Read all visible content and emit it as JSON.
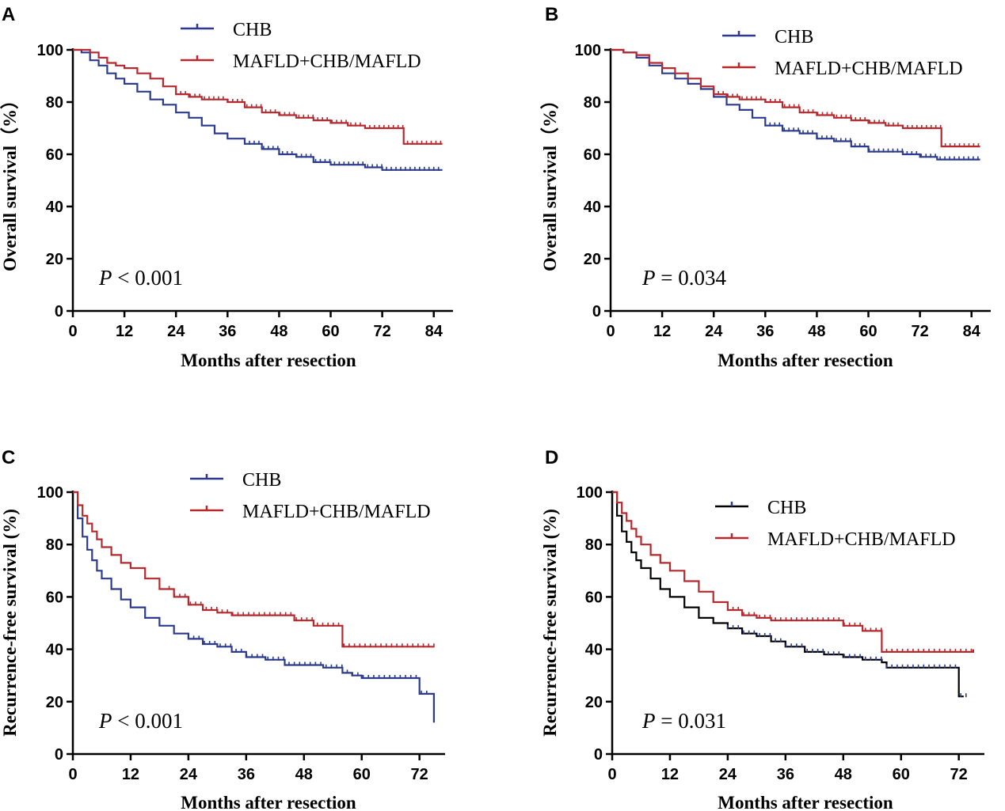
{
  "colors": {
    "chb_blue": "#2b3a8f",
    "mafld_red": "#b5282e",
    "chb_black": "#000000",
    "axis": "#000000"
  },
  "chart_data": [
    {
      "panel": "A",
      "type": "line",
      "subtype": "kaplan-meier",
      "title": "",
      "xlabel": "Months after resection",
      "ylabel": "Overall survival（%）",
      "xticks": [
        0,
        12,
        24,
        36,
        48,
        60,
        72,
        84
      ],
      "yticks": [
        0,
        20,
        40,
        60,
        80,
        100
      ],
      "xlim": [
        0,
        87
      ],
      "ylim": [
        0,
        100
      ],
      "annotation": {
        "p_symbol": "P",
        "p_text": " < 0.001"
      },
      "legend_position": "top-center",
      "series": [
        {
          "name": "CHB",
          "color": "#2b3a8f",
          "points": [
            [
              0,
              100
            ],
            [
              2,
              99
            ],
            [
              4,
              96
            ],
            [
              6,
              94
            ],
            [
              8,
              91
            ],
            [
              10,
              89
            ],
            [
              12,
              87
            ],
            [
              15,
              84
            ],
            [
              18,
              81
            ],
            [
              21,
              79
            ],
            [
              24,
              76
            ],
            [
              27,
              74
            ],
            [
              30,
              71
            ],
            [
              33,
              68
            ],
            [
              36,
              66
            ],
            [
              40,
              64
            ],
            [
              44,
              62
            ],
            [
              48,
              60
            ],
            [
              52,
              59
            ],
            [
              56,
              57
            ],
            [
              60,
              56
            ],
            [
              64,
              56
            ],
            [
              68,
              55
            ],
            [
              72,
              54
            ],
            [
              76,
              54
            ],
            [
              80,
              54
            ],
            [
              86,
              54
            ]
          ],
          "censor_from": 40,
          "censor_to": 86
        },
        {
          "name": "MAFLD+CHB/MAFLD",
          "color": "#b5282e",
          "points": [
            [
              0,
              100
            ],
            [
              4,
              99
            ],
            [
              6,
              97
            ],
            [
              8,
              95
            ],
            [
              10,
              94
            ],
            [
              12,
              93
            ],
            [
              15,
              91
            ],
            [
              18,
              89
            ],
            [
              21,
              86
            ],
            [
              24,
              83
            ],
            [
              27,
              82
            ],
            [
              30,
              81
            ],
            [
              36,
              80
            ],
            [
              40,
              78
            ],
            [
              44,
              76
            ],
            [
              48,
              75
            ],
            [
              52,
              74
            ],
            [
              56,
              73
            ],
            [
              60,
              72
            ],
            [
              64,
              71
            ],
            [
              68,
              70
            ],
            [
              72,
              70
            ],
            [
              77,
              70
            ],
            [
              77,
              64
            ],
            [
              86,
              64
            ]
          ],
          "censor_from": 24,
          "censor_to": 86
        }
      ]
    },
    {
      "panel": "B",
      "type": "line",
      "subtype": "kaplan-meier",
      "title": "",
      "xlabel": "Months after resection",
      "ylabel": "Overall survival（%）",
      "xticks": [
        0,
        12,
        24,
        36,
        48,
        60,
        72,
        84
      ],
      "yticks": [
        0,
        20,
        40,
        60,
        80,
        100
      ],
      "xlim": [
        0,
        87
      ],
      "ylim": [
        0,
        100
      ],
      "annotation": {
        "p_symbol": "P",
        "p_text": " = 0.034"
      },
      "legend_position": "top-center",
      "series": [
        {
          "name": "CHB",
          "color": "#2b3a8f",
          "points": [
            [
              0,
              100
            ],
            [
              3,
              99
            ],
            [
              6,
              97
            ],
            [
              9,
              94
            ],
            [
              12,
              91
            ],
            [
              15,
              89
            ],
            [
              18,
              87
            ],
            [
              21,
              85
            ],
            [
              24,
              82
            ],
            [
              27,
              79
            ],
            [
              30,
              77
            ],
            [
              33,
              74
            ],
            [
              36,
              71
            ],
            [
              40,
              69
            ],
            [
              44,
              68
            ],
            [
              48,
              66
            ],
            [
              52,
              65
            ],
            [
              56,
              63
            ],
            [
              60,
              61
            ],
            [
              64,
              61
            ],
            [
              68,
              60
            ],
            [
              72,
              59
            ],
            [
              76,
              58
            ],
            [
              80,
              58
            ],
            [
              86,
              58
            ]
          ],
          "censor_from": 36,
          "censor_to": 86
        },
        {
          "name": "MAFLD+CHB/MAFLD",
          "color": "#b5282e",
          "points": [
            [
              0,
              100
            ],
            [
              3,
              99
            ],
            [
              6,
              98
            ],
            [
              9,
              95
            ],
            [
              12,
              93
            ],
            [
              15,
              91
            ],
            [
              18,
              89
            ],
            [
              21,
              86
            ],
            [
              24,
              83
            ],
            [
              27,
              82
            ],
            [
              30,
              81
            ],
            [
              36,
              80
            ],
            [
              40,
              78
            ],
            [
              44,
              76
            ],
            [
              48,
              75
            ],
            [
              52,
              74
            ],
            [
              56,
              73
            ],
            [
              60,
              72
            ],
            [
              64,
              71
            ],
            [
              68,
              70
            ],
            [
              72,
              70
            ],
            [
              77,
              70
            ],
            [
              77,
              63
            ],
            [
              86,
              63
            ]
          ],
          "censor_from": 24,
          "censor_to": 86
        }
      ]
    },
    {
      "panel": "C",
      "type": "line",
      "subtype": "kaplan-meier",
      "title": "",
      "xlabel": "Months after resection",
      "ylabel": "Recurrence-free survival (%)",
      "xticks": [
        0,
        12,
        24,
        36,
        48,
        60,
        72
      ],
      "yticks": [
        0,
        20,
        40,
        60,
        80,
        100
      ],
      "xlim": [
        0,
        76
      ],
      "ylim": [
        0,
        100
      ],
      "annotation": {
        "p_symbol": "P",
        "p_text": " < 0.001"
      },
      "legend_position": "top-center",
      "series": [
        {
          "name": "CHB",
          "color": "#2b3a8f",
          "points": [
            [
              0,
              100
            ],
            [
              1,
              90
            ],
            [
              2,
              83
            ],
            [
              3,
              78
            ],
            [
              4,
              74
            ],
            [
              5,
              70
            ],
            [
              6,
              67
            ],
            [
              8,
              63
            ],
            [
              10,
              59
            ],
            [
              12,
              56
            ],
            [
              15,
              52
            ],
            [
              18,
              49
            ],
            [
              21,
              46
            ],
            [
              24,
              44
            ],
            [
              27,
              42
            ],
            [
              30,
              41
            ],
            [
              33,
              39
            ],
            [
              36,
              37
            ],
            [
              40,
              36
            ],
            [
              44,
              34
            ],
            [
              48,
              34
            ],
            [
              52,
              33
            ],
            [
              55,
              33
            ],
            [
              56,
              31
            ],
            [
              58,
              30
            ],
            [
              60,
              29
            ],
            [
              64,
              29
            ],
            [
              68,
              29
            ],
            [
              72,
              29
            ],
            [
              72,
              23
            ],
            [
              75,
              23
            ],
            [
              75,
              12
            ]
          ],
          "censor_from": 24,
          "censor_to": 74
        },
        {
          "name": "MAFLD+CHB/MAFLD",
          "color": "#b5282e",
          "points": [
            [
              0,
              100
            ],
            [
              1,
              95
            ],
            [
              2,
              91
            ],
            [
              3,
              88
            ],
            [
              4,
              85
            ],
            [
              5,
              82
            ],
            [
              6,
              79
            ],
            [
              8,
              76
            ],
            [
              10,
              73
            ],
            [
              12,
              71
            ],
            [
              15,
              67
            ],
            [
              18,
              63
            ],
            [
              21,
              60
            ],
            [
              24,
              57
            ],
            [
              27,
              55
            ],
            [
              30,
              54
            ],
            [
              33,
              53
            ],
            [
              36,
              53
            ],
            [
              40,
              53
            ],
            [
              44,
              53
            ],
            [
              46,
              51
            ],
            [
              48,
              51
            ],
            [
              50,
              49
            ],
            [
              55,
              49
            ],
            [
              56,
              41
            ],
            [
              60,
              41
            ],
            [
              64,
              41
            ],
            [
              68,
              41
            ],
            [
              72,
              41
            ],
            [
              75,
              41
            ]
          ],
          "censor_from": 20,
          "censor_to": 75
        }
      ]
    },
    {
      "panel": "D",
      "type": "line",
      "subtype": "kaplan-meier",
      "title": "",
      "xlabel": "Months after resection",
      "ylabel": "Recurrence-free survival (%)",
      "xticks": [
        0,
        12,
        24,
        36,
        48,
        60,
        72
      ],
      "yticks": [
        0,
        20,
        40,
        60,
        80,
        100
      ],
      "xlim": [
        0,
        76
      ],
      "ylim": [
        0,
        100
      ],
      "annotation": {
        "p_symbol": "P",
        "p_text": " = 0.031"
      },
      "legend_position": "top-center",
      "series": [
        {
          "name": "CHB",
          "color": "#000000",
          "censor_color": "#2b3a8f",
          "points": [
            [
              0,
              100
            ],
            [
              1,
              91
            ],
            [
              2,
              85
            ],
            [
              3,
              81
            ],
            [
              4,
              77
            ],
            [
              5,
              74
            ],
            [
              6,
              71
            ],
            [
              8,
              67
            ],
            [
              10,
              63
            ],
            [
              12,
              60
            ],
            [
              15,
              56
            ],
            [
              18,
              52
            ],
            [
              21,
              50
            ],
            [
              24,
              48
            ],
            [
              27,
              46
            ],
            [
              30,
              45
            ],
            [
              33,
              43
            ],
            [
              36,
              41
            ],
            [
              40,
              39
            ],
            [
              44,
              38
            ],
            [
              48,
              37
            ],
            [
              52,
              36
            ],
            [
              56,
              35
            ],
            [
              57,
              33
            ],
            [
              60,
              33
            ],
            [
              64,
              33
            ],
            [
              68,
              33
            ],
            [
              72,
              33
            ],
            [
              72,
              22
            ],
            [
              73,
              22
            ]
          ],
          "censor_from": 24,
          "censor_to": 74
        },
        {
          "name": "MAFLD+CHB/MAFLD",
          "color": "#b5282e",
          "points": [
            [
              0,
              100
            ],
            [
              1,
              96
            ],
            [
              2,
              92
            ],
            [
              3,
              89
            ],
            [
              4,
              86
            ],
            [
              5,
              83
            ],
            [
              6,
              80
            ],
            [
              8,
              76
            ],
            [
              10,
              73
            ],
            [
              12,
              70
            ],
            [
              15,
              66
            ],
            [
              18,
              62
            ],
            [
              21,
              58
            ],
            [
              24,
              55
            ],
            [
              27,
              53
            ],
            [
              30,
              52
            ],
            [
              33,
              51
            ],
            [
              36,
              51
            ],
            [
              40,
              51
            ],
            [
              44,
              51
            ],
            [
              48,
              49
            ],
            [
              52,
              47
            ],
            [
              56,
              47
            ],
            [
              56,
              39
            ],
            [
              60,
              39
            ],
            [
              64,
              39
            ],
            [
              68,
              39
            ],
            [
              72,
              39
            ],
            [
              75,
              40
            ]
          ],
          "censor_from": 24,
          "censor_to": 75
        }
      ]
    }
  ]
}
